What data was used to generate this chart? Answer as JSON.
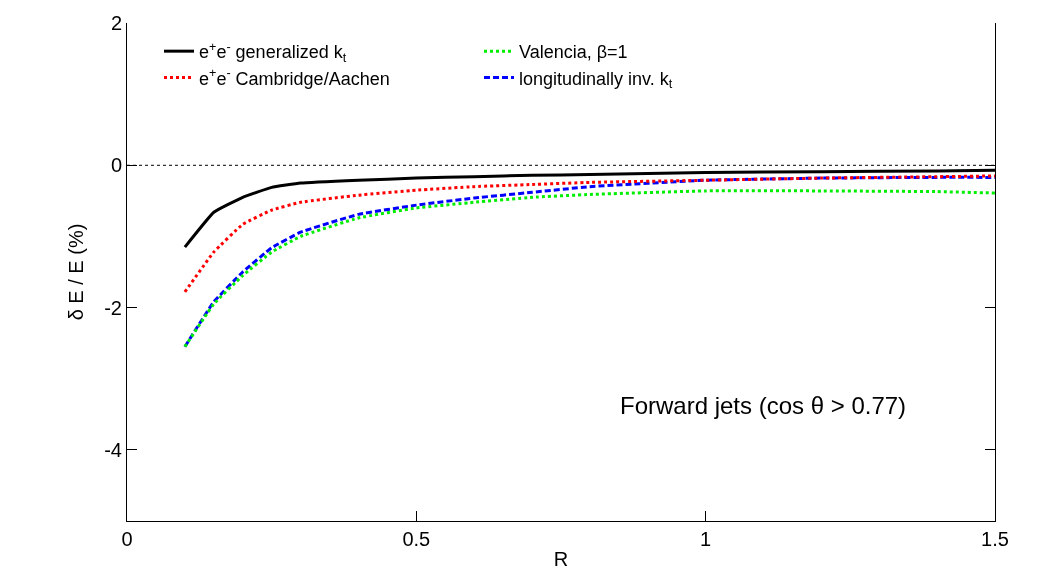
{
  "chart_data": {
    "type": "line",
    "xlabel": "R",
    "ylabel": "δ E / E (%)",
    "xlim": [
      0,
      1.5
    ],
    "ylim": [
      -5,
      2
    ],
    "xticks": [
      0,
      0.5,
      1,
      1.5
    ],
    "yticks": [
      -4,
      -2,
      0,
      2
    ],
    "legend": "top",
    "marker": "none",
    "x": [
      0.1,
      0.15,
      0.2,
      0.25,
      0.3,
      0.4,
      0.5,
      0.6,
      0.7,
      0.8,
      1.0,
      1.2,
      1.4,
      1.5
    ],
    "series": [
      {
        "name": "e$^{+}$e$^{-}$ generalized k$_{t}$",
        "color": "#000000",
        "line_style": "solid",
        "values": [
          -1.15,
          -0.66,
          -0.45,
          -0.31,
          -0.25,
          -0.21,
          -0.18,
          -0.16,
          -0.14,
          -0.13,
          -0.1,
          -0.09,
          -0.08,
          -0.07
        ]
      },
      {
        "name": "e$^{+}$e$^{-}$ Cambridge/Aachen",
        "color": "#ff0000",
        "line_style": "dotted",
        "values": [
          -1.78,
          -1.22,
          -0.83,
          -0.63,
          -0.52,
          -0.42,
          -0.35,
          -0.3,
          -0.27,
          -0.24,
          -0.21,
          -0.18,
          -0.16,
          -0.15
        ]
      },
      {
        "name": "Valencia, β=1",
        "color": "#00ee00",
        "line_style": "dotted",
        "values": [
          -2.55,
          -1.95,
          -1.55,
          -1.22,
          -1.0,
          -0.74,
          -0.6,
          -0.52,
          -0.45,
          -0.41,
          -0.36,
          -0.36,
          -0.37,
          -0.39
        ]
      },
      {
        "name": "longitudinally inv. k$_{t}$",
        "color": "#0000ff",
        "line_style": "dashed",
        "values": [
          -2.55,
          -1.92,
          -1.5,
          -1.16,
          -0.94,
          -0.69,
          -0.56,
          -0.46,
          -0.38,
          -0.3,
          -0.21,
          -0.18,
          -0.17,
          -0.17
        ]
      }
    ],
    "ref_lines": [
      {
        "axis": "y",
        "value": 0,
        "color": "#000000",
        "line_style": "dotted"
      }
    ],
    "annotations": [
      "Forward jets (cos θ > 0.77)"
    ]
  }
}
